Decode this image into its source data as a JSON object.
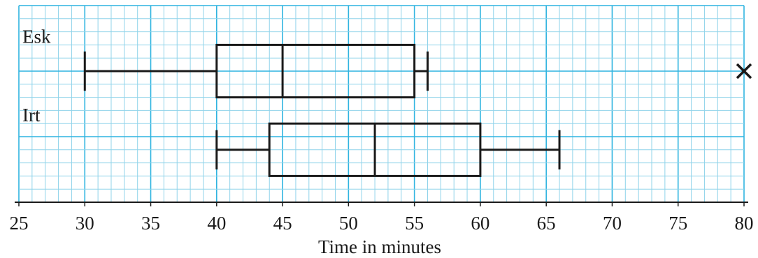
{
  "chart_data": {
    "type": "boxplot",
    "xlabel": "Time in minutes",
    "xlim": [
      25,
      80
    ],
    "x_ticks": [
      25,
      30,
      35,
      40,
      45,
      50,
      55,
      60,
      65,
      70,
      75,
      80
    ],
    "grid": true,
    "grid_minor_step": 1,
    "grid_major_step": 5,
    "colors": {
      "grid_minor": "#8fd3ea",
      "grid_major": "#2fb4e0",
      "ink": "#1a1a1a"
    },
    "series": [
      {
        "name": "Esk",
        "min": 30,
        "q1": 40,
        "median": 45,
        "q3": 55,
        "max": 56,
        "outliers": [
          80
        ]
      },
      {
        "name": "Irt",
        "min": 40,
        "q1": 44,
        "median": 52,
        "q3": 60,
        "max": 66,
        "outliers": []
      }
    ]
  }
}
